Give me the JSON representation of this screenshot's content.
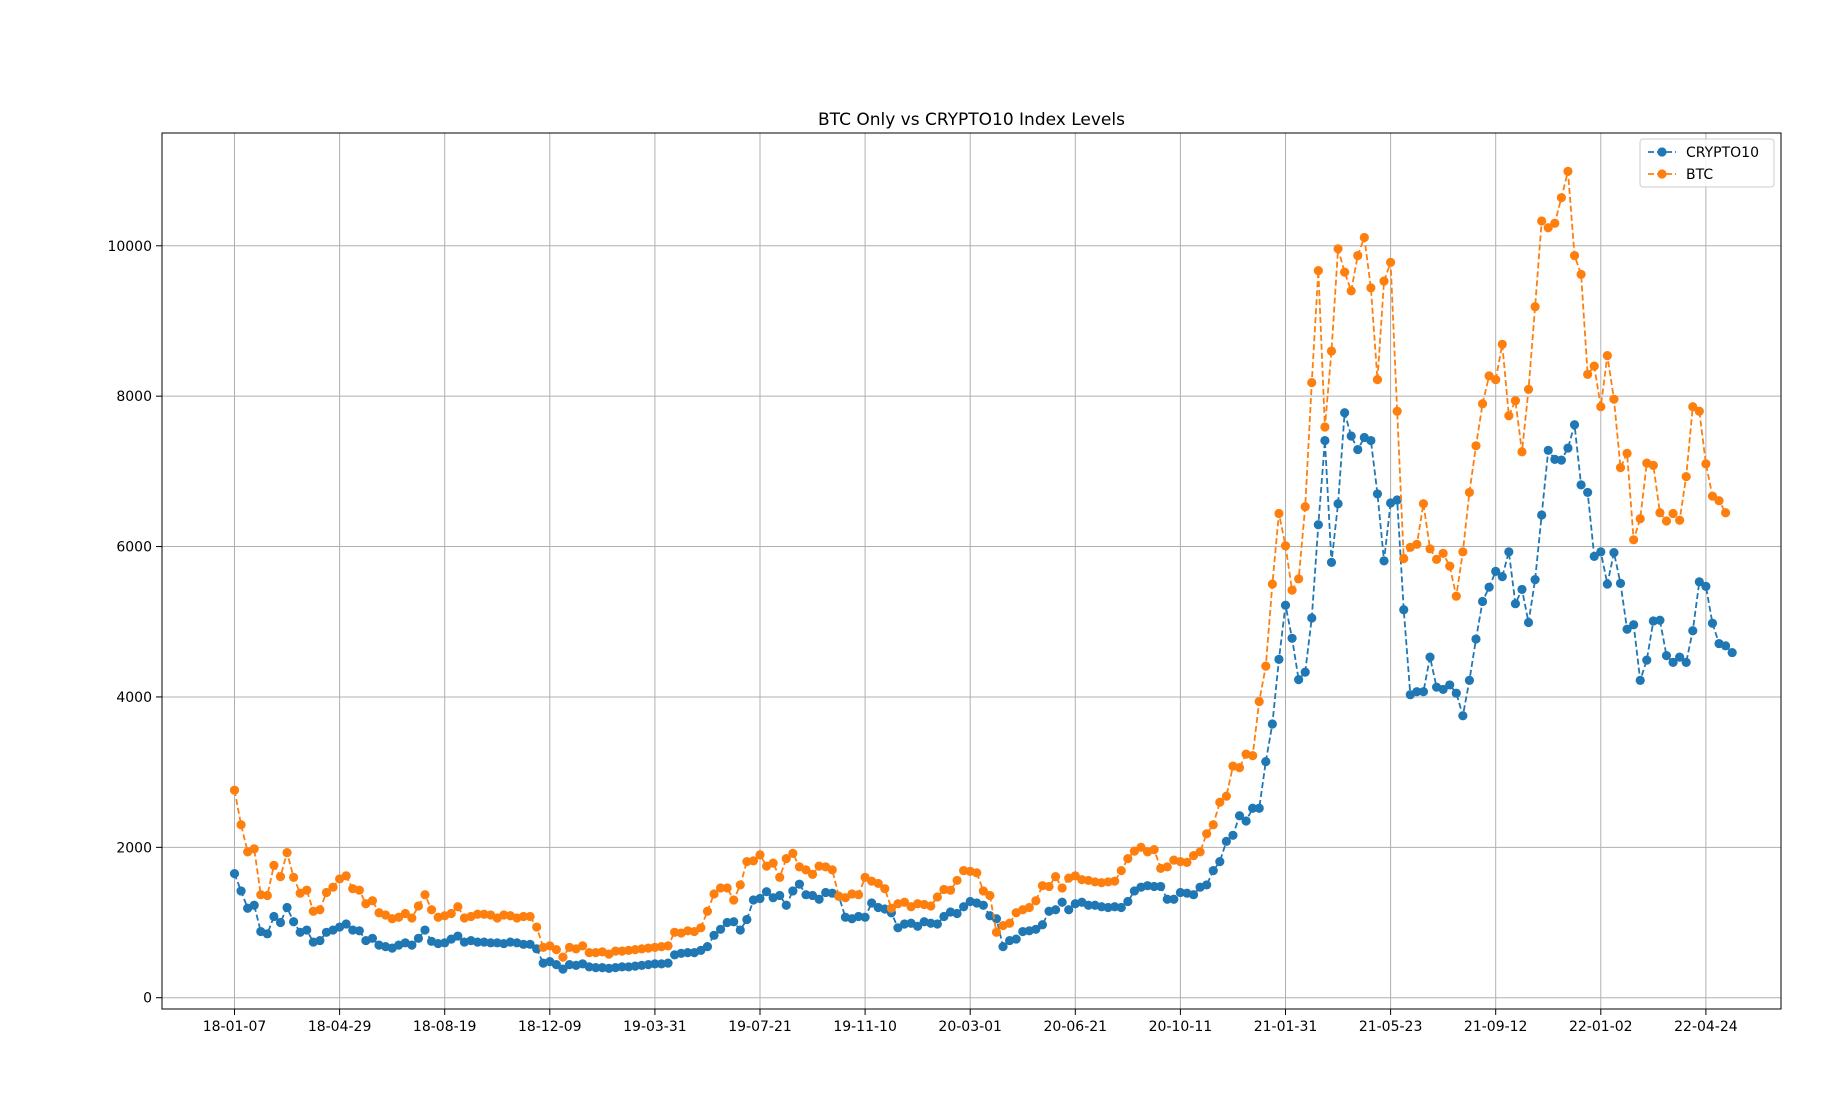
{
  "chart_data": {
    "type": "line",
    "title": "BTC Only vs CRYPTO10 Index Levels",
    "xlabel": "",
    "ylabel": "",
    "x_tick_labels": [
      "18-01-07",
      "18-04-29",
      "18-08-19",
      "18-12-09",
      "19-03-31",
      "19-07-21",
      "19-11-10",
      "20-03-01",
      "20-06-21",
      "20-10-11",
      "21-01-31",
      "21-05-23",
      "21-09-12",
      "22-01-02",
      "22-04-24"
    ],
    "y_ticks": [
      0,
      2000,
      4000,
      6000,
      8000,
      10000
    ],
    "y_tick_labels": [
      "0",
      "2000",
      "4000",
      "6000",
      "8000",
      "10000"
    ],
    "ylim": [
      -150,
      11500
    ],
    "grid": true,
    "legend_position": "top-right",
    "x_start": "2018-01-07",
    "x_step": "1 week",
    "series": [
      {
        "name": "CRYPTO10",
        "color": "#1f77b4",
        "style": "dashed-with-circles",
        "values": [
          1650,
          1420,
          1190,
          1230,
          880,
          850,
          1080,
          1000,
          1200,
          1010,
          870,
          900,
          740,
          760,
          870,
          900,
          940,
          980,
          900,
          890,
          760,
          790,
          700,
          680,
          660,
          700,
          730,
          700,
          790,
          900,
          750,
          720,
          730,
          780,
          820,
          740,
          760,
          740,
          740,
          730,
          730,
          720,
          740,
          730,
          710,
          710,
          650,
          460,
          480,
          440,
          380,
          440,
          430,
          450,
          410,
          400,
          400,
          390,
          400,
          410,
          410,
          420,
          430,
          440,
          450,
          450,
          460,
          570,
          590,
          600,
          600,
          630,
          680,
          830,
          910,
          1000,
          1010,
          900,
          1040,
          1300,
          1320,
          1410,
          1330,
          1360,
          1230,
          1420,
          1510,
          1370,
          1360,
          1310,
          1400,
          1390,
          1350,
          1070,
          1050,
          1080,
          1070,
          1260,
          1200,
          1180,
          1130,
          930,
          980,
          990,
          950,
          1010,
          990,
          980,
          1080,
          1140,
          1120,
          1210,
          1280,
          1260,
          1230,
          1090,
          1050,
          680,
          760,
          780,
          880,
          890,
          910,
          970,
          1150,
          1170,
          1270,
          1170,
          1250,
          1270,
          1230,
          1230,
          1210,
          1200,
          1210,
          1200,
          1280,
          1420,
          1470,
          1490,
          1480,
          1480,
          1310,
          1310,
          1400,
          1390,
          1370,
          1470,
          1500,
          1690,
          1810,
          2080,
          2160,
          2420,
          2350,
          2520,
          2520,
          3140,
          3640,
          4500,
          5220,
          4780,
          4230,
          4330,
          5050,
          6290,
          7410,
          5790,
          6570,
          7780,
          7470,
          7290,
          7450,
          7410,
          6700,
          5810,
          6580,
          6620,
          5160,
          4030,
          4070,
          4070,
          4530,
          4130,
          4100,
          4160,
          4050,
          3750,
          4220,
          4770,
          5270,
          5460,
          5670,
          5600,
          5930,
          5240,
          5430,
          4990,
          5560,
          6420,
          7280,
          7160,
          7150,
          7310,
          7620,
          6820,
          6720,
          5870,
          5930,
          5500,
          5920,
          5510,
          4900,
          4960,
          4220,
          4490,
          5010,
          5020,
          4550,
          4460,
          4530,
          4460,
          4880,
          5530,
          5470,
          4980,
          4710,
          4680,
          4590
        ]
      },
      {
        "name": "BTC",
        "color": "#ff7f0e",
        "style": "dashed-with-circles",
        "values": [
          2760,
          2300,
          1940,
          1980,
          1370,
          1360,
          1760,
          1610,
          1930,
          1600,
          1390,
          1430,
          1150,
          1170,
          1400,
          1470,
          1580,
          1620,
          1450,
          1430,
          1250,
          1290,
          1130,
          1100,
          1050,
          1070,
          1120,
          1060,
          1220,
          1370,
          1170,
          1070,
          1090,
          1120,
          1210,
          1060,
          1080,
          1110,
          1110,
          1100,
          1060,
          1100,
          1090,
          1060,
          1080,
          1080,
          940,
          670,
          690,
          640,
          540,
          670,
          650,
          690,
          600,
          600,
          610,
          580,
          620,
          620,
          630,
          640,
          650,
          660,
          670,
          680,
          690,
          870,
          860,
          890,
          880,
          930,
          1150,
          1380,
          1460,
          1460,
          1300,
          1500,
          1810,
          1820,
          1900,
          1750,
          1790,
          1600,
          1850,
          1920,
          1740,
          1700,
          1640,
          1750,
          1740,
          1700,
          1350,
          1330,
          1380,
          1370,
          1600,
          1550,
          1520,
          1450,
          1190,
          1250,
          1270,
          1210,
          1250,
          1240,
          1220,
          1340,
          1440,
          1430,
          1560,
          1690,
          1680,
          1660,
          1420,
          1360,
          870,
          960,
          990,
          1130,
          1170,
          1200,
          1290,
          1490,
          1480,
          1610,
          1460,
          1590,
          1620,
          1570,
          1560,
          1540,
          1530,
          1540,
          1550,
          1690,
          1850,
          1950,
          2000,
          1940,
          1970,
          1720,
          1740,
          1830,
          1810,
          1800,
          1890,
          1940,
          2180,
          2300,
          2600,
          2680,
          3080,
          3060,
          3240,
          3220,
          3940,
          4410,
          5500,
          6440,
          6010,
          5420,
          5570,
          6530,
          8180,
          9670,
          7590,
          8600,
          9960,
          9650,
          9400,
          9870,
          10110,
          9440,
          8220,
          9530,
          9780,
          7800,
          5840,
          5990,
          6030,
          6570,
          5970,
          5830,
          5910,
          5740,
          5340,
          5930,
          6720,
          7340,
          7900,
          8270,
          8220,
          8690,
          7740,
          7940,
          7260,
          8090,
          9190,
          10330,
          10240,
          10300,
          10640,
          10990,
          9870,
          9620,
          8290,
          8400,
          7860,
          8540,
          7960,
          7050,
          7240,
          6090,
          6370,
          7110,
          7080,
          6450,
          6340,
          6440,
          6350,
          6930,
          7860,
          7800,
          7100,
          6670,
          6610,
          6450
        ]
      }
    ]
  }
}
